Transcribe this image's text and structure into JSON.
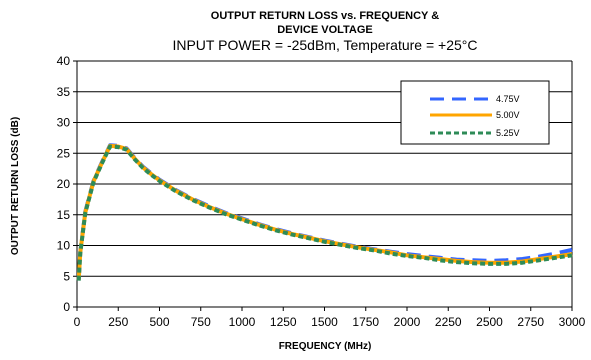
{
  "chart_data": {
    "type": "line",
    "title_line1": "OUTPUT RETURN LOSS  vs. FREQUENCY &",
    "title_line2": "DEVICE VOLTAGE",
    "subtitle": "INPUT POWER = -25dBm, Temperature = +25°C",
    "xlabel": "FREQUENCY (MHz)",
    "ylabel": "OUTPUT RETURN LOSS (dB)",
    "xlim": [
      0,
      3000
    ],
    "ylim": [
      0,
      40
    ],
    "xticks": [
      0,
      250,
      500,
      750,
      1000,
      1250,
      1500,
      1750,
      2000,
      2250,
      2500,
      2750,
      3000
    ],
    "yticks": [
      0,
      5,
      10,
      15,
      20,
      25,
      30,
      35,
      40
    ],
    "grid": "horizontal",
    "legend_position": "top-right",
    "x": [
      10,
      20,
      50,
      100,
      150,
      200,
      250,
      300,
      350,
      400,
      450,
      500,
      600,
      700,
      800,
      900,
      1000,
      1100,
      1200,
      1300,
      1400,
      1500,
      1600,
      1700,
      1800,
      1900,
      2000,
      2100,
      2200,
      2300,
      2400,
      2500,
      2600,
      2700,
      2800,
      2900,
      3000
    ],
    "series": [
      {
        "name": "4.75V",
        "color": "#3366ff",
        "dash": "long-dash",
        "values": [
          4.5,
          9.0,
          15.5,
          20.5,
          23.5,
          26.3,
          26.2,
          25.8,
          24.2,
          22.8,
          21.7,
          20.7,
          19.0,
          17.6,
          16.4,
          15.3,
          14.4,
          13.5,
          12.7,
          12.0,
          11.4,
          10.8,
          10.3,
          9.8,
          9.4,
          9.0,
          8.6,
          8.3,
          8.0,
          7.7,
          7.6,
          7.5,
          7.6,
          7.8,
          8.2,
          8.7,
          9.3
        ]
      },
      {
        "name": "5.00V",
        "color": "#ffa500",
        "dash": "solid",
        "values": [
          4.4,
          8.9,
          15.4,
          20.4,
          23.4,
          26.2,
          26.1,
          25.7,
          24.1,
          22.7,
          21.6,
          20.6,
          18.9,
          17.5,
          16.3,
          15.2,
          14.3,
          13.4,
          12.6,
          11.9,
          11.3,
          10.7,
          10.2,
          9.7,
          9.3,
          8.9,
          8.4,
          8.1,
          7.8,
          7.5,
          7.3,
          7.2,
          7.2,
          7.4,
          7.8,
          8.2,
          8.6
        ]
      },
      {
        "name": "5.25V",
        "color": "#2e8b57",
        "dash": "short-dash",
        "values": [
          4.3,
          8.8,
          15.3,
          20.3,
          23.3,
          26.1,
          26.0,
          25.6,
          24.0,
          22.6,
          21.5,
          20.5,
          18.8,
          17.4,
          16.2,
          15.1,
          14.2,
          13.3,
          12.5,
          11.8,
          11.2,
          10.6,
          10.1,
          9.6,
          9.2,
          8.7,
          8.3,
          8.0,
          7.6,
          7.3,
          7.1,
          7.0,
          7.0,
          7.2,
          7.6,
          8.0,
          8.4
        ]
      }
    ]
  }
}
